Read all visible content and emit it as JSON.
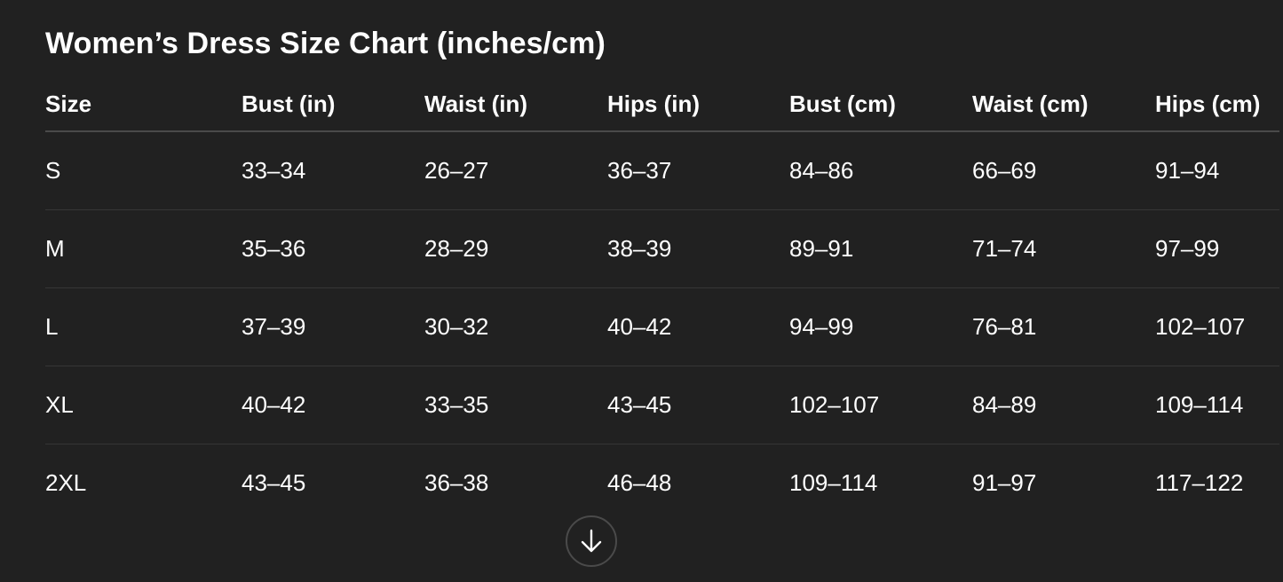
{
  "title": "Women’s Dress Size Chart (inches/cm)",
  "table": {
    "headers": [
      "Size",
      "Bust (in)",
      "Waist (in)",
      "Hips (in)",
      "Bust (cm)",
      "Waist (cm)",
      "Hips (cm)"
    ],
    "rows": [
      [
        "S",
        "33–34",
        "26–27",
        "36–37",
        "84–86",
        "66–69",
        "91–94"
      ],
      [
        "M",
        "35–36",
        "28–29",
        "38–39",
        "89–91",
        "71–74",
        "97–99"
      ],
      [
        "L",
        "37–39",
        "30–32",
        "40–42",
        "94–99",
        "76–81",
        "102–107"
      ],
      [
        "XL",
        "40–42",
        "33–35",
        "43–45",
        "102–107",
        "84–89",
        "109–114"
      ],
      [
        "2XL",
        "43–45",
        "36–38",
        "46–48",
        "109–114",
        "91–97",
        "117–122"
      ]
    ]
  },
  "scroll_button": {
    "icon": "arrow-down-icon"
  }
}
